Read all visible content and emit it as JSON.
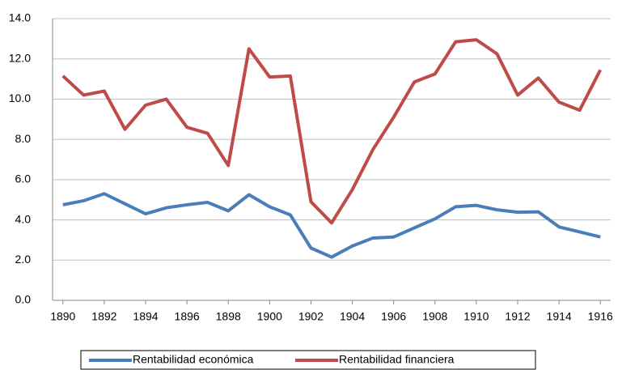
{
  "chart_data": {
    "type": "line",
    "x": [
      1890,
      1891,
      1892,
      1893,
      1894,
      1895,
      1896,
      1897,
      1898,
      1899,
      1900,
      1901,
      1902,
      1903,
      1904,
      1905,
      1906,
      1907,
      1908,
      1909,
      1910,
      1911,
      1912,
      1913,
      1914,
      1915,
      1916
    ],
    "series": [
      {
        "name": "Rentabilidad económica",
        "color": "#4a7ebb",
        "values": [
          4.75,
          4.95,
          5.3,
          4.8,
          4.3,
          4.6,
          4.75,
          4.87,
          4.45,
          5.25,
          4.65,
          4.25,
          2.6,
          2.15,
          2.7,
          3.1,
          3.15,
          3.6,
          4.05,
          4.65,
          4.72,
          4.5,
          4.38,
          4.4,
          3.65,
          3.4,
          3.15
        ]
      },
      {
        "name": "Rentabilidad financiera",
        "color": "#be4b48",
        "values": [
          11.15,
          10.2,
          10.4,
          8.5,
          9.7,
          10.0,
          8.6,
          8.3,
          6.7,
          12.5,
          11.1,
          11.15,
          4.9,
          3.85,
          5.5,
          7.5,
          9.1,
          10.85,
          11.25,
          12.85,
          12.95,
          12.25,
          10.2,
          11.05,
          9.85,
          9.45,
          11.45
        ]
      }
    ],
    "xlim": [
      1889.5,
      1916.5
    ],
    "xticks": [
      1890,
      1892,
      1894,
      1896,
      1898,
      1900,
      1902,
      1904,
      1906,
      1908,
      1910,
      1912,
      1914,
      1916
    ],
    "ylim": [
      0,
      14
    ],
    "yticks": [
      {
        "value": 0,
        "label": "0.0"
      },
      {
        "value": 2,
        "label": "2.0"
      },
      {
        "value": 4,
        "label": "4.0"
      },
      {
        "value": 6,
        "label": "6.0"
      },
      {
        "value": 8,
        "label": "8.0"
      },
      {
        "value": 10,
        "label": "10.0"
      },
      {
        "value": 12,
        "label": "12.0"
      },
      {
        "value": 14,
        "label": "14.0"
      }
    ],
    "grid": true,
    "legend": "bottom"
  }
}
